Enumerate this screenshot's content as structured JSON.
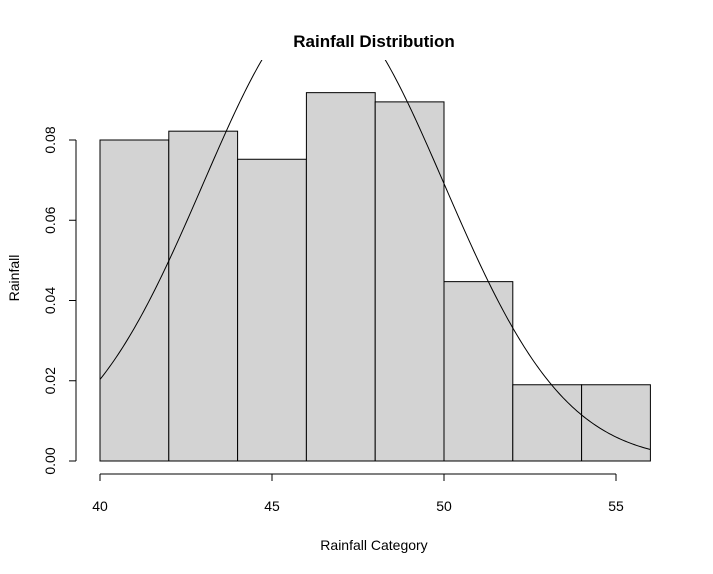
{
  "chart_data": {
    "type": "bar",
    "title": "Rainfall Distribution",
    "xlabel": "Rainfall Category",
    "ylabel": "Rainfall",
    "xlim": [
      40,
      56
    ],
    "ylim": [
      0,
      0.092
    ],
    "bins": [
      {
        "x0": 40,
        "x1": 42,
        "density": 0.08
      },
      {
        "x0": 42,
        "x1": 44,
        "density": 0.0822
      },
      {
        "x0": 44,
        "x1": 46,
        "density": 0.0752
      },
      {
        "x0": 46,
        "x1": 48,
        "density": 0.0918
      },
      {
        "x0": 48,
        "x1": 50,
        "density": 0.0895
      },
      {
        "x0": 50,
        "x1": 52,
        "density": 0.0447
      },
      {
        "x0": 52,
        "x1": 54,
        "density": 0.019
      },
      {
        "x0": 54,
        "x1": 56,
        "density": 0.019
      }
    ],
    "x_ticks": [
      40,
      45,
      50,
      55
    ],
    "x_tick_labels": [
      "40",
      "45",
      "50",
      "55"
    ],
    "y_ticks": [
      0,
      0.02,
      0.04,
      0.06,
      0.08
    ],
    "y_tick_labels": [
      "0.00",
      "0.02",
      "0.04",
      "0.06",
      "0.08"
    ],
    "density_curve": {
      "type": "normal",
      "mean": 46.5,
      "sd": 3.5
    }
  }
}
